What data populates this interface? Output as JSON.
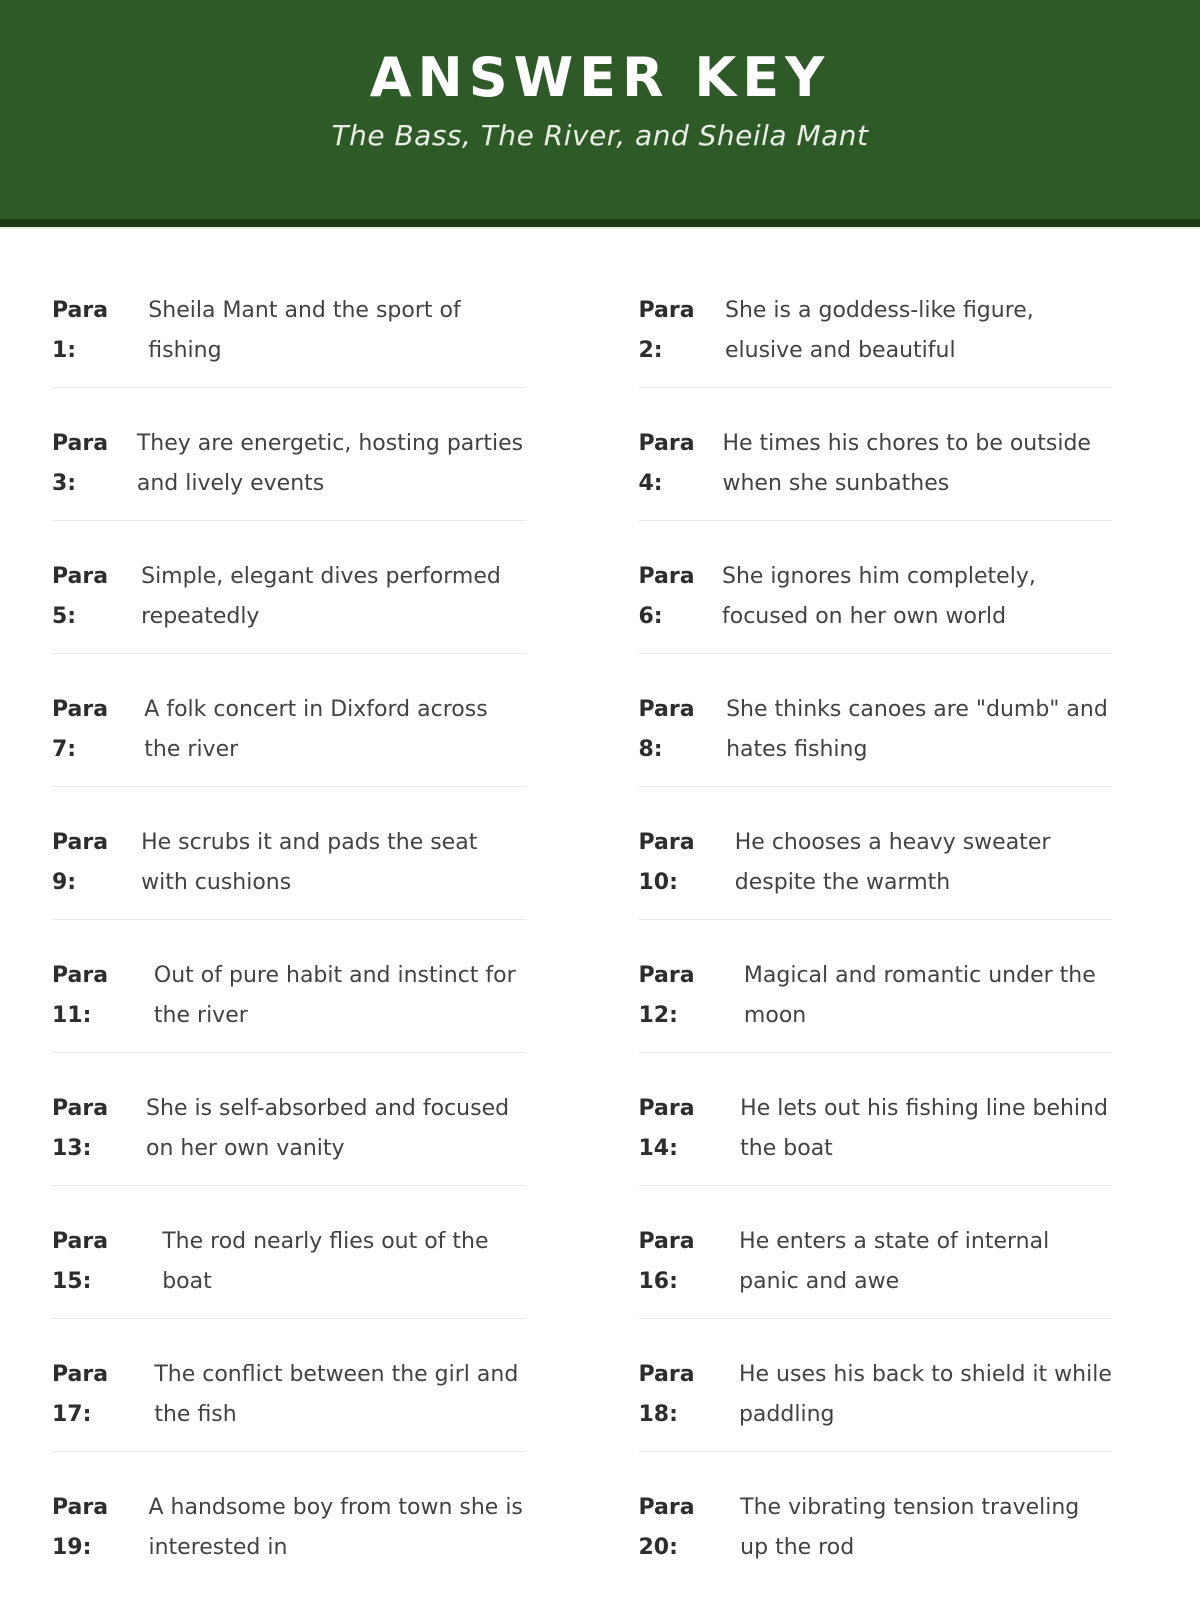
{
  "theme": {
    "header_green": "#2e5a27",
    "header_strip": "#1d3812",
    "divider": "#e9e9e9",
    "title_color": "#ffffff",
    "label_color": "#2d2d2d",
    "text_color": "#424242"
  },
  "header": {
    "title": "ANSWER KEY",
    "subtitle": "The Bass, The River, and Sheila Mant"
  },
  "answers": [
    {
      "label": "Para 1:",
      "text": "Sheila Mant and the sport of fishing"
    },
    {
      "label": "Para 2:",
      "text": "She is a goddess-like figure, elusive and beautiful"
    },
    {
      "label": "Para 3:",
      "text": "They are energetic, hosting parties and lively events"
    },
    {
      "label": "Para 4:",
      "text": "He times his chores to be outside when she sunbathes"
    },
    {
      "label": "Para 5:",
      "text": "Simple, elegant dives performed repeatedly"
    },
    {
      "label": "Para 6:",
      "text": "She ignores him completely, focused on her own world"
    },
    {
      "label": "Para 7:",
      "text": "A folk concert in Dixford across the river"
    },
    {
      "label": "Para 8:",
      "text": "She thinks canoes are \"dumb\" and hates fishing"
    },
    {
      "label": "Para 9:",
      "text": "He scrubs it and pads the seat with cushions"
    },
    {
      "label": "Para 10:",
      "text": "He chooses a heavy sweater despite the warmth"
    },
    {
      "label": "Para 11:",
      "text": "Out of pure habit and instinct for the river"
    },
    {
      "label": "Para 12:",
      "text": "Magical and romantic under the moon"
    },
    {
      "label": "Para 13:",
      "text": "She is self-absorbed and focused on her own vanity"
    },
    {
      "label": "Para 14:",
      "text": "He lets out his fishing line behind the boat"
    },
    {
      "label": "Para 15:",
      "text": "The rod nearly flies out of the boat"
    },
    {
      "label": "Para 16:",
      "text": "He enters a state of internal panic and awe"
    },
    {
      "label": "Para 17:",
      "text": "The conflict between the girl and the fish"
    },
    {
      "label": "Para 18:",
      "text": "He uses his back to shield it while paddling"
    },
    {
      "label": "Para 19:",
      "text": "A handsome boy from town she is interested in"
    },
    {
      "label": "Para 20:",
      "text": "The vibrating tension traveling up the rod"
    }
  ]
}
